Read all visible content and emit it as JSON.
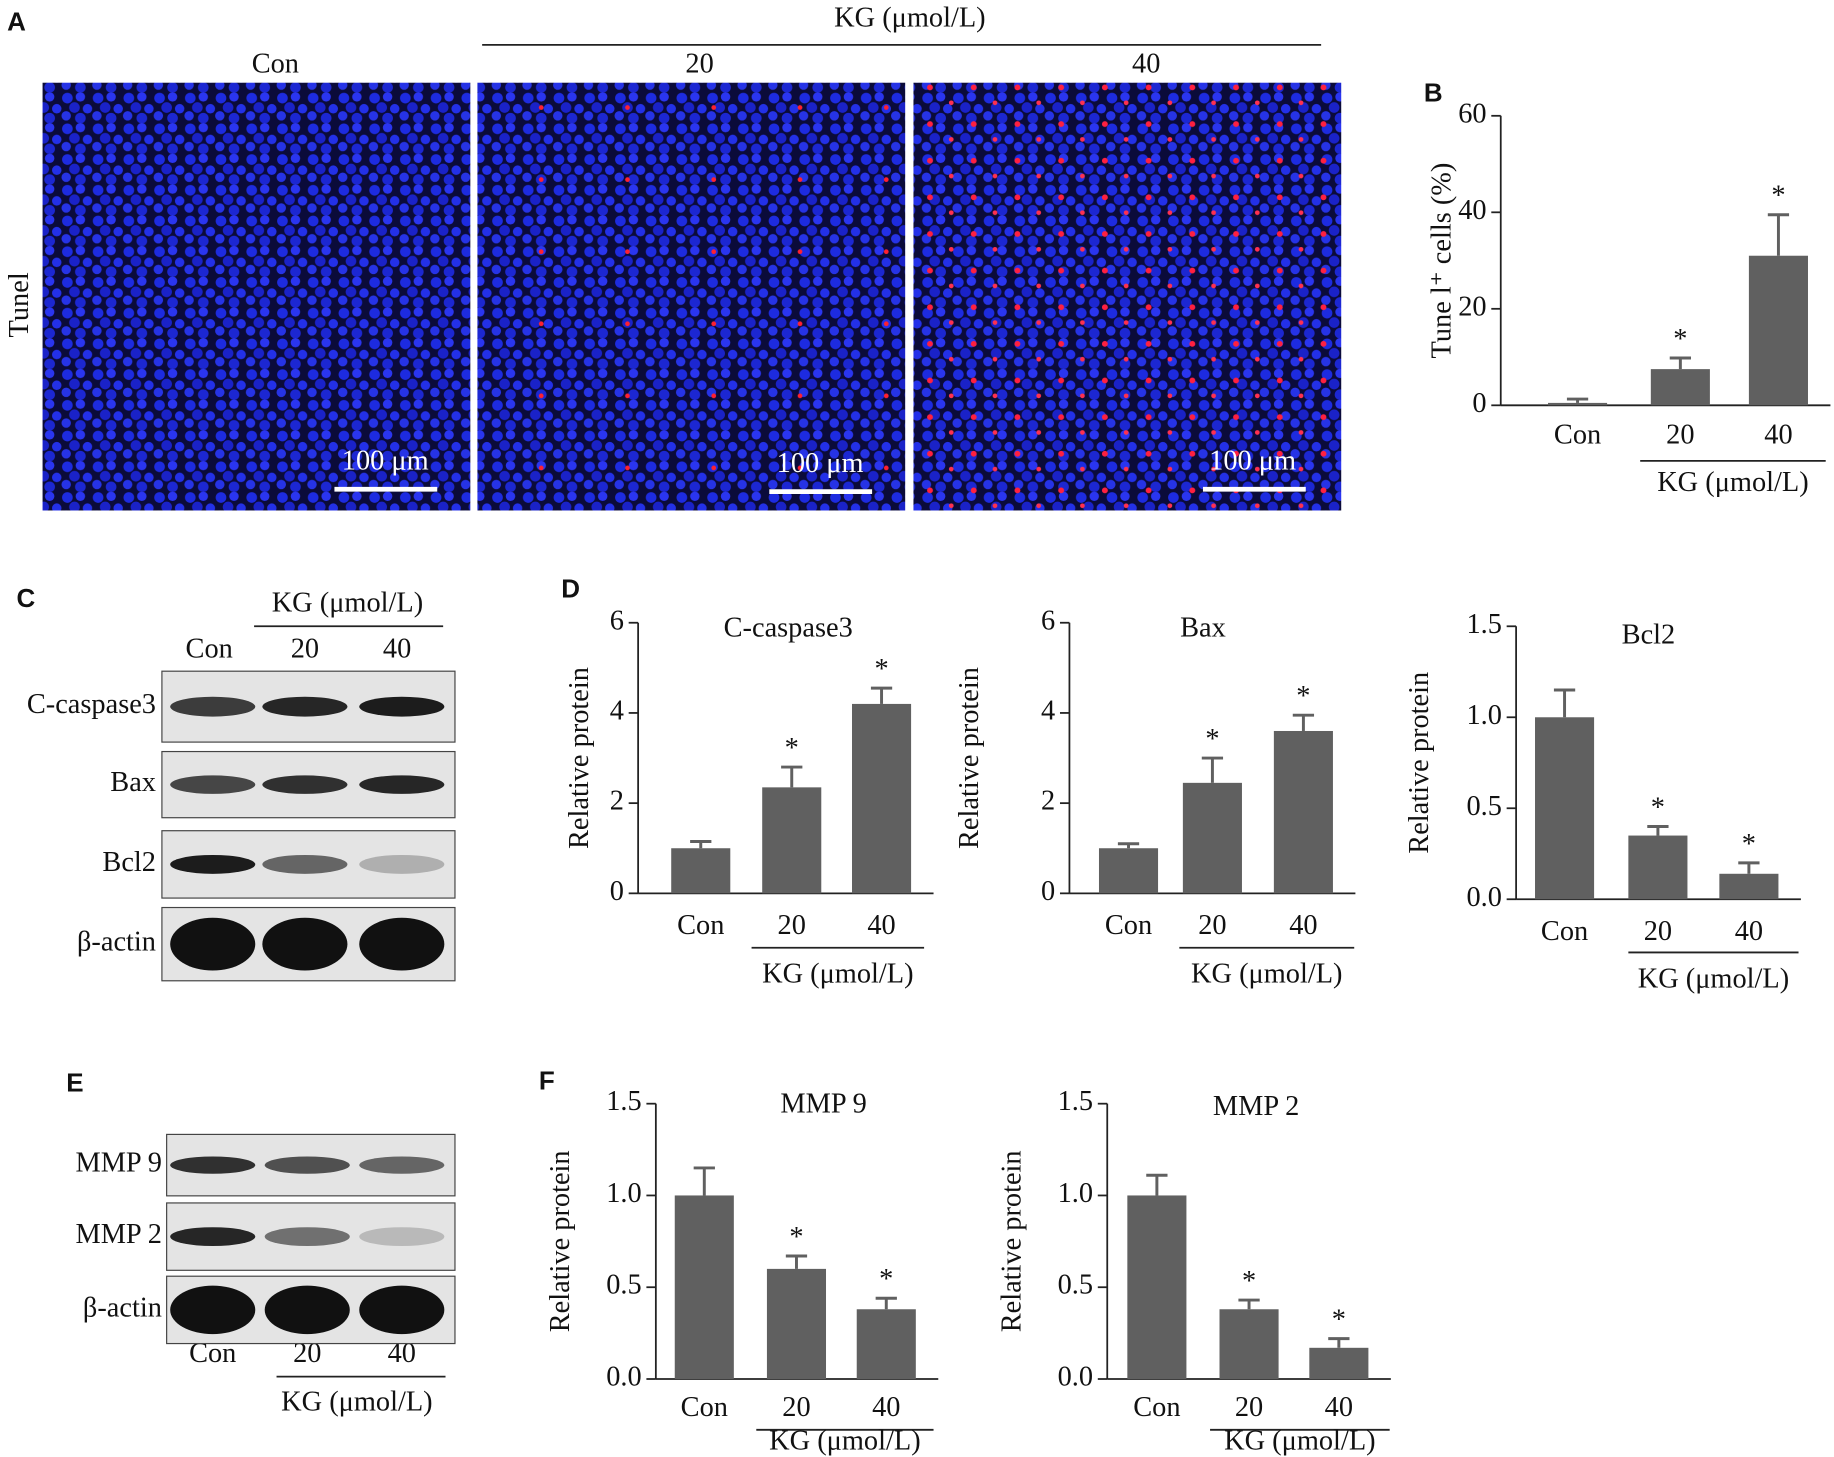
{
  "panel_labels": [
    "A",
    "B",
    "C",
    "D",
    "E",
    "F"
  ],
  "imaging": {
    "group_label": "KG (μmol/L)",
    "columns": [
      "Con",
      "20",
      "40"
    ],
    "row_label": "Tunel",
    "scale_bar": "100 μm"
  },
  "blot_c": {
    "group_label": "KG (μmol/L)",
    "lanes": [
      "Con",
      "20",
      "40"
    ],
    "rows": [
      "C-caspase3",
      "Bax",
      "Bcl2",
      "β-actin"
    ]
  },
  "blot_e": {
    "group_label": "KG (μmol/L)",
    "lanes": [
      "Con",
      "20",
      "40"
    ],
    "rows": [
      "MMP 9",
      "MMP 2",
      "β-actin"
    ]
  },
  "chart_data": [
    {
      "type": "bar",
      "y_label": "Tune l⁺ cells (%)",
      "categories": [
        "Con",
        "20",
        "40"
      ],
      "group_label": "KG (μmol/L)",
      "values": [
        0.5,
        7.5,
        31
      ],
      "errors": [
        0.8,
        2.3,
        8.5
      ],
      "significance": [
        null,
        "*",
        "*"
      ],
      "color": "#606060",
      "ylim": [
        0,
        60
      ],
      "yticks": [
        0,
        20,
        40,
        60
      ]
    },
    {
      "type": "bar",
      "title": "C-caspase3",
      "y_label": "Relative protein",
      "categories": [
        "Con",
        "20",
        "40"
      ],
      "group_label": "KG (μmol/L)",
      "values": [
        1.0,
        2.35,
        4.2
      ],
      "errors": [
        0.15,
        0.45,
        0.35
      ],
      "significance": [
        null,
        "*",
        "*"
      ],
      "color": "#606060",
      "ylim": [
        0,
        6
      ],
      "yticks": [
        0,
        2,
        4,
        6
      ]
    },
    {
      "type": "bar",
      "title": "Bax",
      "y_label": "Relative protein",
      "categories": [
        "Con",
        "20",
        "40"
      ],
      "group_label": "KG (μmol/L)",
      "values": [
        1.0,
        2.45,
        3.6
      ],
      "errors": [
        0.1,
        0.55,
        0.35
      ],
      "significance": [
        null,
        "*",
        "*"
      ],
      "color": "#606060",
      "ylim": [
        0,
        6
      ],
      "yticks": [
        0,
        2,
        4,
        6
      ]
    },
    {
      "type": "bar",
      "title": "Bcl2",
      "y_label": "Relative protein",
      "categories": [
        "Con",
        "20",
        "40"
      ],
      "group_label": "KG (μmol/L)",
      "values": [
        1.0,
        0.35,
        0.14
      ],
      "errors": [
        0.15,
        0.05,
        0.06
      ],
      "significance": [
        null,
        "*",
        "*"
      ],
      "color": "#606060",
      "ylim": [
        0,
        1.5
      ],
      "yticks": [
        {
          "value": 0,
          "label": "0.0"
        },
        0.5,
        {
          "value": 1,
          "label": "1.0"
        },
        1.5
      ]
    },
    {
      "type": "bar",
      "title": "MMP 9",
      "y_label": "Relative protein",
      "categories": [
        "Con",
        "20",
        "40"
      ],
      "group_label": "KG (μmol/L)",
      "values": [
        1.0,
        0.6,
        0.38
      ],
      "errors": [
        0.15,
        0.07,
        0.06
      ],
      "significance": [
        null,
        "*",
        "*"
      ],
      "color": "#606060",
      "ylim": [
        0,
        1.5
      ],
      "yticks": [
        {
          "value": 0,
          "label": "0.0"
        },
        0.5,
        {
          "value": 1,
          "label": "1.0"
        },
        1.5
      ]
    },
    {
      "type": "bar",
      "title": "MMP 2",
      "y_label": "Relative protein",
      "categories": [
        "Con",
        "20",
        "40"
      ],
      "group_label": "KG (μmol/L)",
      "values": [
        1.0,
        0.38,
        0.17
      ],
      "errors": [
        0.11,
        0.05,
        0.05
      ],
      "significance": [
        null,
        "*",
        "*"
      ],
      "color": "#606060",
      "ylim": [
        0,
        1.5
      ],
      "yticks": [
        {
          "value": 0,
          "label": "0.0"
        },
        0.5,
        {
          "value": 1,
          "label": "1.0"
        },
        1.5
      ]
    }
  ]
}
